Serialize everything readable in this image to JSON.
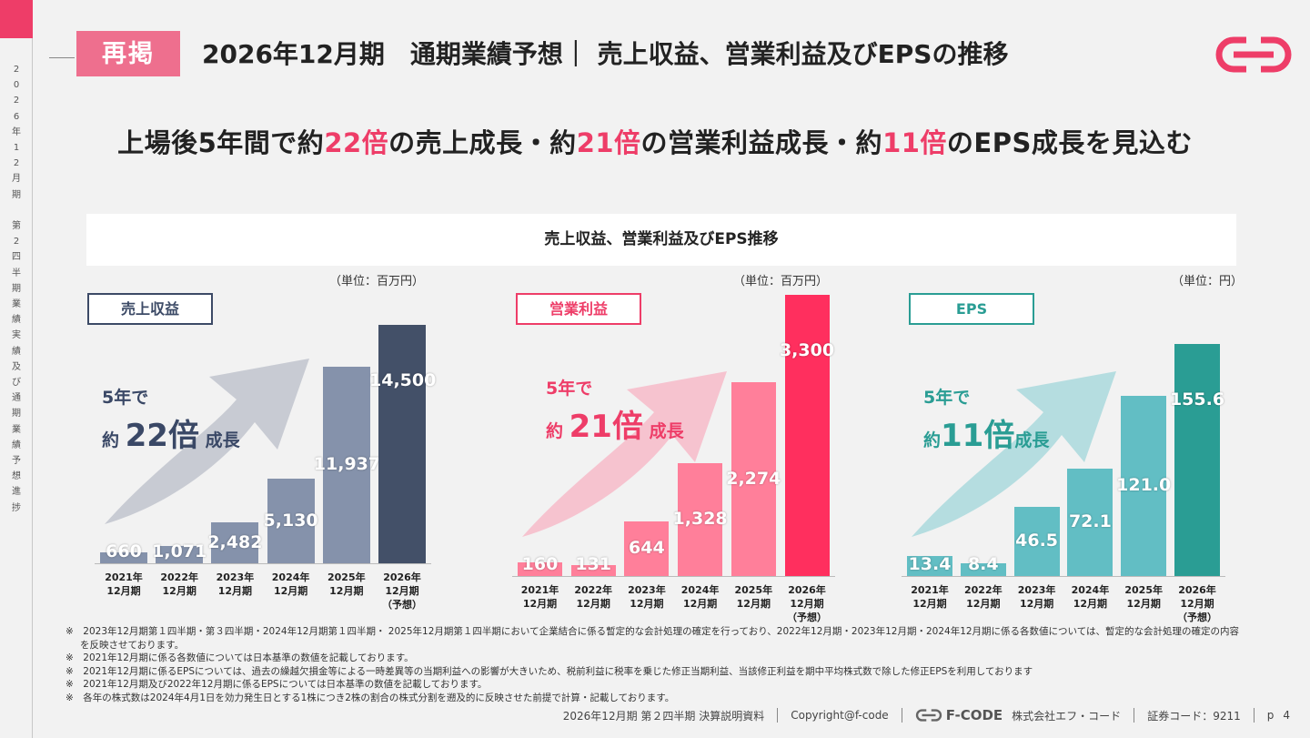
{
  "sidebar": {
    "vertical_text": [
      "2",
      "0",
      "2",
      "6",
      "年",
      "1",
      "2",
      "月",
      "期",
      "",
      "第",
      "2",
      "四",
      "半",
      "期",
      "業",
      "績",
      "実",
      "績",
      "及",
      "び",
      "通",
      "期",
      "業",
      "績",
      "予",
      "想",
      "進",
      "捗"
    ]
  },
  "header": {
    "badge": "再掲",
    "title": "2026年12月期　通期業績予想｜ 売上収益、営業利益及びEPSの推移"
  },
  "headline": {
    "parts": [
      "上場後5年間で約",
      "22倍",
      "の売上成長・約",
      "21倍",
      "の営業利益成長・約",
      "11倍",
      "のEPS成長を見込む"
    ]
  },
  "chart_banner": "売上収益、営業利益及びEPS推移",
  "colors": {
    "accent": "#ee3d68",
    "revenue_dark": "#435068",
    "revenue_light": "#8592ab",
    "op_dark": "#ff2f5e",
    "op_light": "#ff7f9a",
    "eps_dark": "#2a9d94",
    "eps_light": "#62bec4"
  },
  "chart_data": [
    {
      "type": "bar",
      "title": "売上収益",
      "unit": "（単位：百万円）",
      "growth": {
        "line1": "5年で",
        "prefix": "約 ",
        "multiple": "22倍",
        "suffix": " 成長"
      },
      "categories": [
        "2021年\n12月期",
        "2022年\n12月期",
        "2023年\n12月期",
        "2024年\n12月期",
        "2025年\n12月期",
        "2026年\n12月期\n（予想）"
      ],
      "values": [
        660,
        1071,
        2482,
        5130,
        11937,
        14500
      ],
      "labels": [
        "660",
        "1,071",
        "2,482",
        "5,130",
        "11,937",
        "14,500"
      ],
      "ylim": [
        0,
        14500
      ]
    },
    {
      "type": "bar",
      "title": "営業利益",
      "unit": "（単位：百万円）",
      "growth": {
        "line1": "5年で",
        "prefix": "約 ",
        "multiple": "21倍",
        "suffix": " 成長"
      },
      "categories": [
        "2021年\n12月期",
        "2022年\n12月期",
        "2023年\n12月期",
        "2024年\n12月期",
        "2025年\n12月期",
        "2026年\n12月期\n（予想）"
      ],
      "values": [
        160,
        131,
        644,
        1328,
        2274,
        3300
      ],
      "labels": [
        "160",
        "131",
        "644",
        "1,328",
        "2,274",
        "3,300"
      ],
      "ylim": [
        0,
        3300
      ]
    },
    {
      "type": "bar",
      "title": "EPS",
      "unit": "（単位：円）",
      "growth": {
        "line1": "5年で",
        "prefix": "約",
        "multiple": "11倍",
        "suffix": "成長"
      },
      "categories": [
        "2021年\n12月期",
        "2022年\n12月期",
        "2023年\n12月期",
        "2024年\n12月期",
        "2025年\n12月期",
        "2026年\n12月期\n（予想）"
      ],
      "values": [
        13.4,
        8.4,
        46.5,
        72.1,
        121.0,
        155.6
      ],
      "labels": [
        "13.4",
        "8.4",
        "46.5",
        "72.1",
        "121.0",
        "155.6"
      ],
      "ylim": [
        0,
        155.6
      ]
    }
  ],
  "notes": [
    "※　2023年12月期第１四半期・第３四半期・2024年12月期第１四半期・ 2025年12月期第１四半期において企業結合に係る暫定的な会計処理の確定を行っており、2022年12月期・2023年12月期・2024年12月期に係る各数値については、暫定的な会計処理の確定の内容を反映させております。",
    "※　2021年12月期に係る各数値については日本基準の数値を記載しております。",
    "※　2021年12月期に係るEPSについては、過去の繰越欠損金等による一時差異等の当期利益への影響が大きいため、税前利益に税率を乗じた修正当期利益、当該修正利益を期中平均株式数で除した修正EPSを利用しております",
    "※　2021年12月期及び2022年12月期に係るEPSについては日本基準の数値を記載しております。",
    "※　各年の株式数は2024年4月1日を効力発生日とする1株につき2株の割合の株式分割を遡及的に反映させた前提で計算・記載しております。"
  ],
  "footer": {
    "doc": "2026年12月期 第２四半期 決算説明資料",
    "copyright": "Copyright@f-code",
    "brand": "F-CODE",
    "company": "株式会社エフ・コード",
    "code": "証券コード：9211",
    "page_label": "p",
    "page": "4"
  }
}
